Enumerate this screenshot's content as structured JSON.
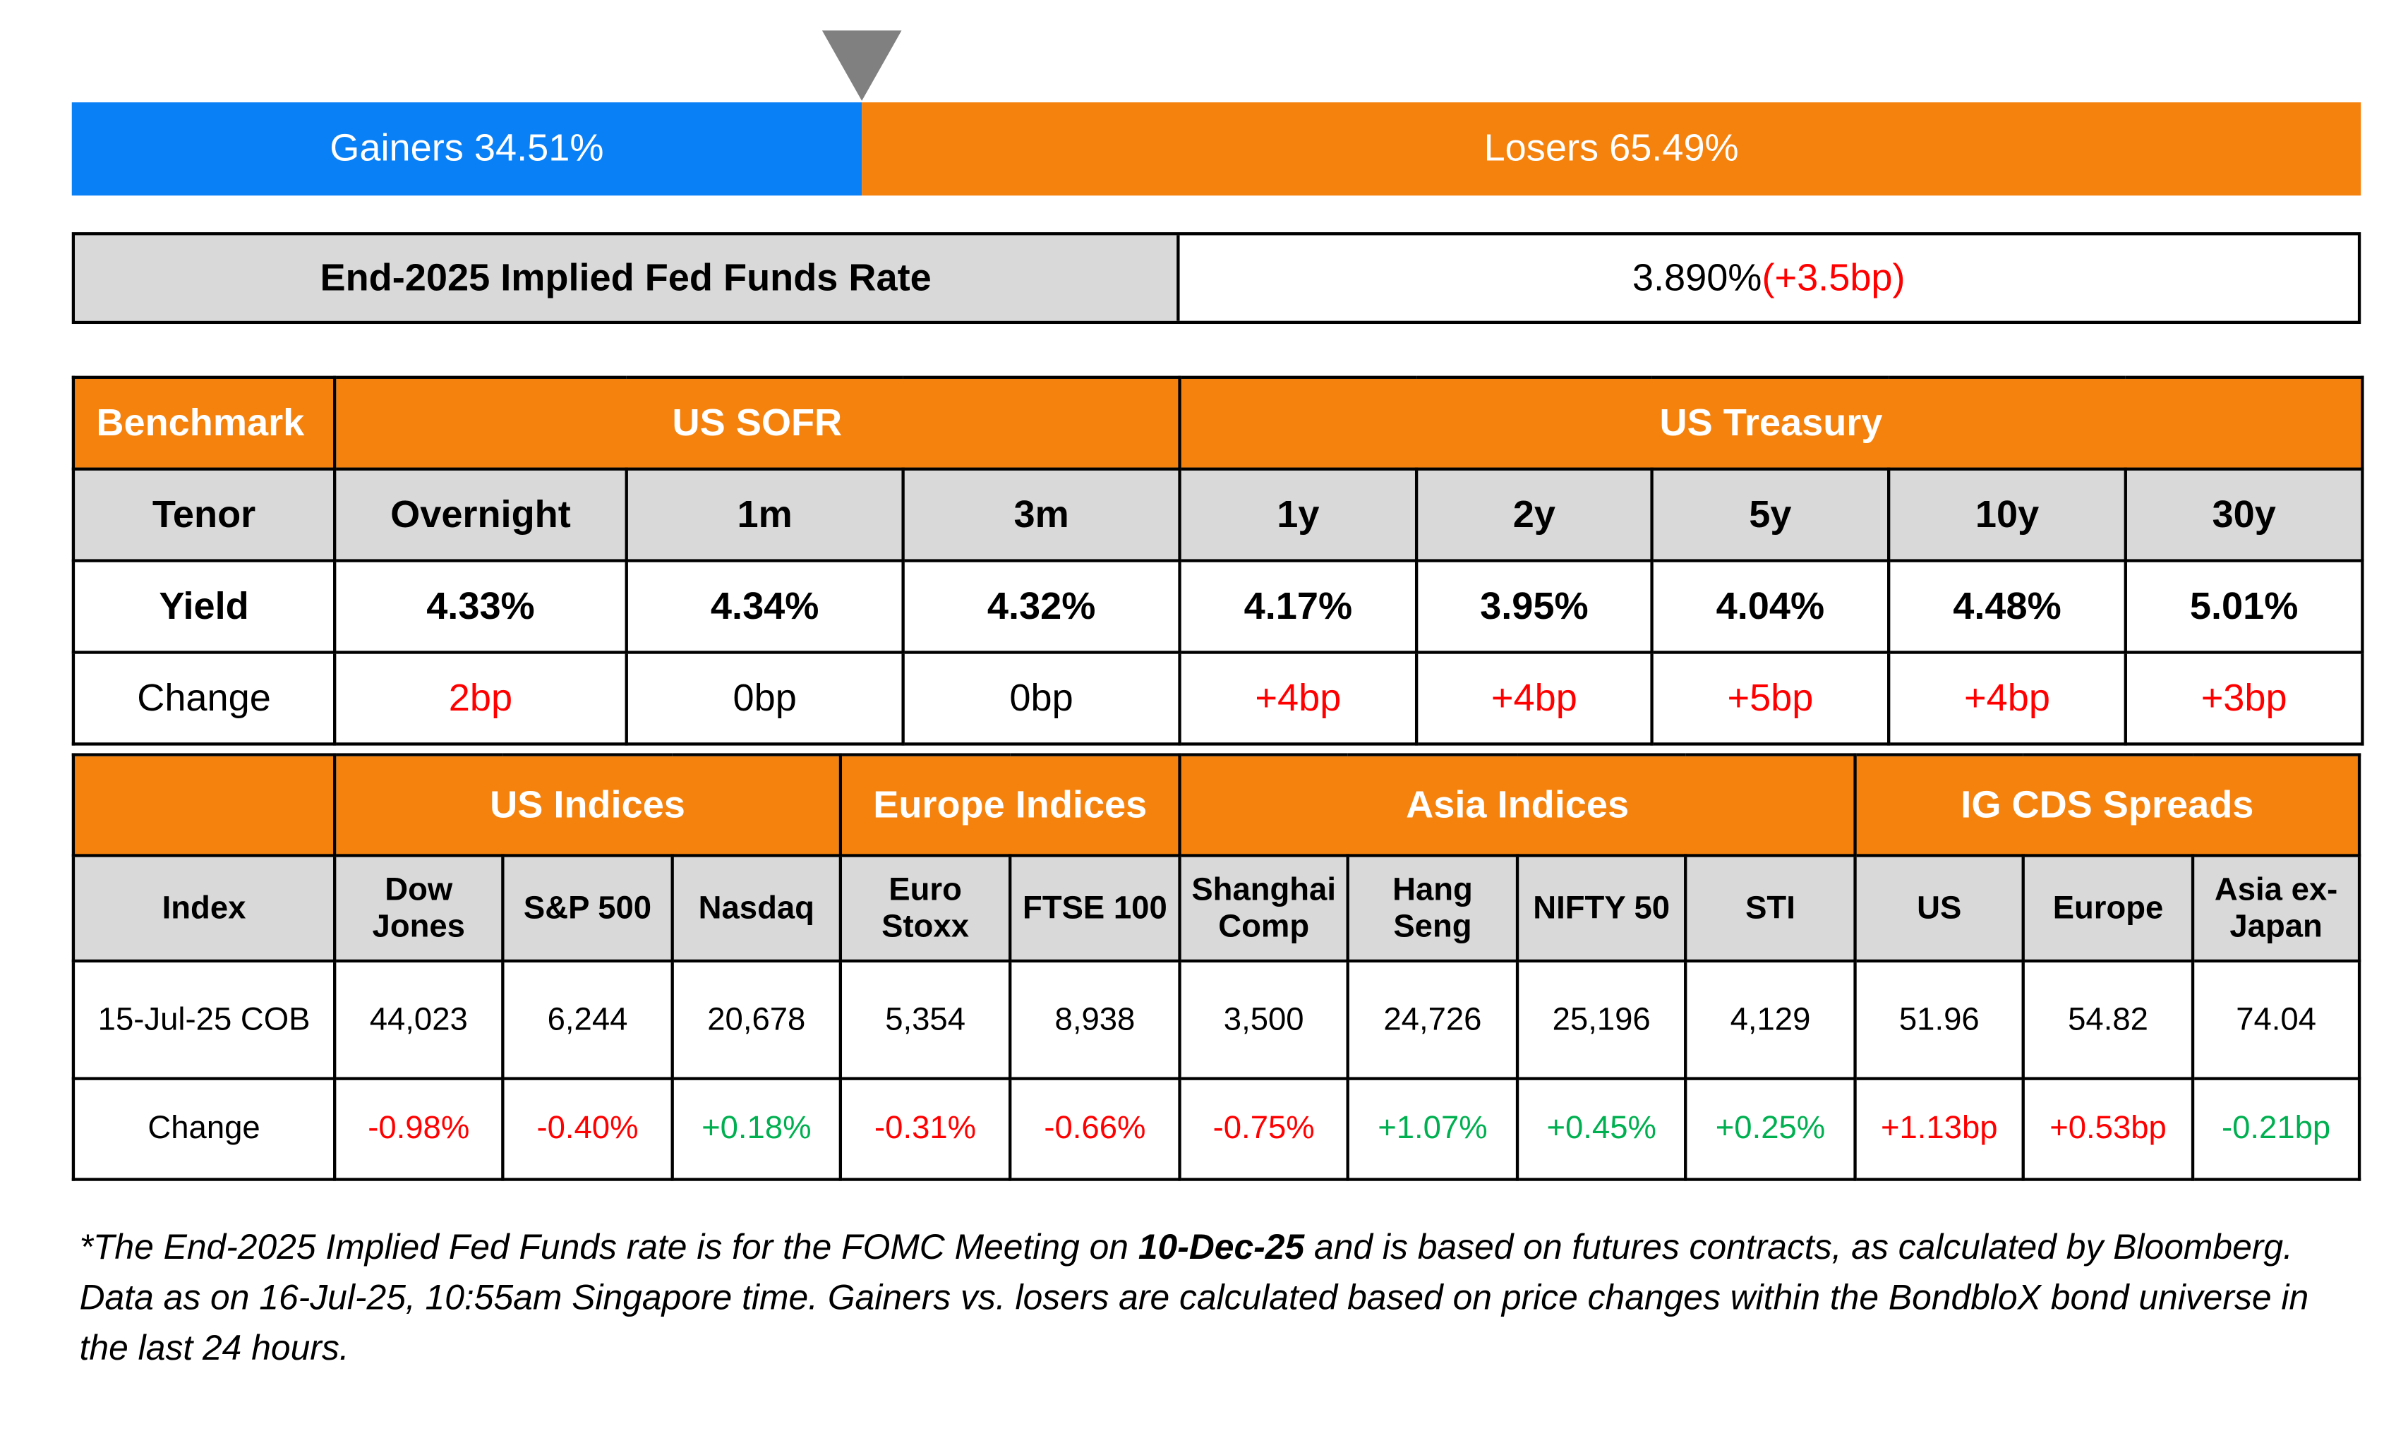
{
  "breadth": {
    "segments": [
      {
        "label": "Gainers 34.51%",
        "value": 34.51,
        "color": "#0a80f7"
      },
      {
        "label": "Losers 65.49%",
        "value": 65.49,
        "color": "#f5820d"
      }
    ]
  },
  "fed_funds": {
    "label": "End-2025 Implied Fed Funds Rate",
    "rate": "3.890%",
    "change": {
      "text": "(+3.5bp)",
      "color": "#ff0000"
    }
  },
  "rates": {
    "corner": "Benchmark",
    "row_labels": [
      "Tenor",
      "Yield",
      "Change"
    ],
    "groups": [
      {
        "name": "US SOFR",
        "columns": [
          {
            "tenor": "Overnight",
            "yield": "4.33%",
            "change": {
              "text": "2bp",
              "color": "#ff0000"
            }
          },
          {
            "tenor": "1m",
            "yield": "4.34%",
            "change": {
              "text": "0bp",
              "color": "#000000"
            }
          },
          {
            "tenor": "3m",
            "yield": "4.32%",
            "change": {
              "text": "0bp",
              "color": "#000000"
            }
          }
        ]
      },
      {
        "name": "US Treasury",
        "columns": [
          {
            "tenor": "1y",
            "yield": "4.17%",
            "change": {
              "text": "+4bp",
              "color": "#ff0000"
            }
          },
          {
            "tenor": "2y",
            "yield": "3.95%",
            "change": {
              "text": "+4bp",
              "color": "#ff0000"
            }
          },
          {
            "tenor": "5y",
            "yield": "4.04%",
            "change": {
              "text": "+5bp",
              "color": "#ff0000"
            }
          },
          {
            "tenor": "10y",
            "yield": "4.48%",
            "change": {
              "text": "+4bp",
              "color": "#ff0000"
            }
          },
          {
            "tenor": "30y",
            "yield": "5.01%",
            "change": {
              "text": "+3bp",
              "color": "#ff0000"
            }
          }
        ]
      }
    ]
  },
  "indices": {
    "row_labels": [
      "Index",
      "15-Jul-25 COB",
      "Change"
    ],
    "groups": [
      {
        "name": "US Indices",
        "columns": [
          {
            "name": "Dow Jones",
            "level": "44,023",
            "change": {
              "text": "-0.98%",
              "color": "#ff0000"
            }
          },
          {
            "name": "S&P 500",
            "level": "6,244",
            "change": {
              "text": "-0.40%",
              "color": "#ff0000"
            }
          },
          {
            "name": "Nasdaq",
            "level": "20,678",
            "change": {
              "text": "+0.18%",
              "color": "#00b050"
            }
          }
        ]
      },
      {
        "name": "Europe Indices",
        "columns": [
          {
            "name": "Euro Stoxx",
            "level": "5,354",
            "change": {
              "text": "-0.31%",
              "color": "#ff0000"
            }
          },
          {
            "name": "FTSE 100",
            "level": "8,938",
            "change": {
              "text": "-0.66%",
              "color": "#ff0000"
            }
          }
        ]
      },
      {
        "name": "Asia Indices",
        "columns": [
          {
            "name": "Shanghai Comp",
            "level": "3,500",
            "change": {
              "text": "-0.75%",
              "color": "#ff0000"
            }
          },
          {
            "name": "Hang Seng",
            "level": "24,726",
            "change": {
              "text": "+1.07%",
              "color": "#00b050"
            }
          },
          {
            "name": "NIFTY 50",
            "level": "25,196",
            "change": {
              "text": "+0.45%",
              "color": "#00b050"
            }
          },
          {
            "name": "STI",
            "level": "4,129",
            "change": {
              "text": "+0.25%",
              "color": "#00b050"
            }
          }
        ]
      },
      {
        "name": "IG CDS Spreads",
        "columns": [
          {
            "name": "US",
            "level": "51.96",
            "change": {
              "text": "+1.13bp",
              "color": "#ff0000"
            }
          },
          {
            "name": "Europe",
            "level": "54.82",
            "change": {
              "text": "+0.53bp",
              "color": "#ff0000"
            }
          },
          {
            "name": "Asia ex-Japan",
            "level": "74.04",
            "change": {
              "text": "-0.21bp",
              "color": "#00b050"
            }
          }
        ]
      }
    ]
  },
  "footnote": [
    "*The End-2025 Implied Fed Funds rate is for the FOMC Meeting on ",
    "10-Dec-25",
    " and is based on futures contracts, as calculated by Bloomberg. Data as on 16-Jul-25, 10:55am Singapore time. Gainers vs. losers are calculated based on price changes within the BondbloX bond universe in the last 24 hours."
  ]
}
